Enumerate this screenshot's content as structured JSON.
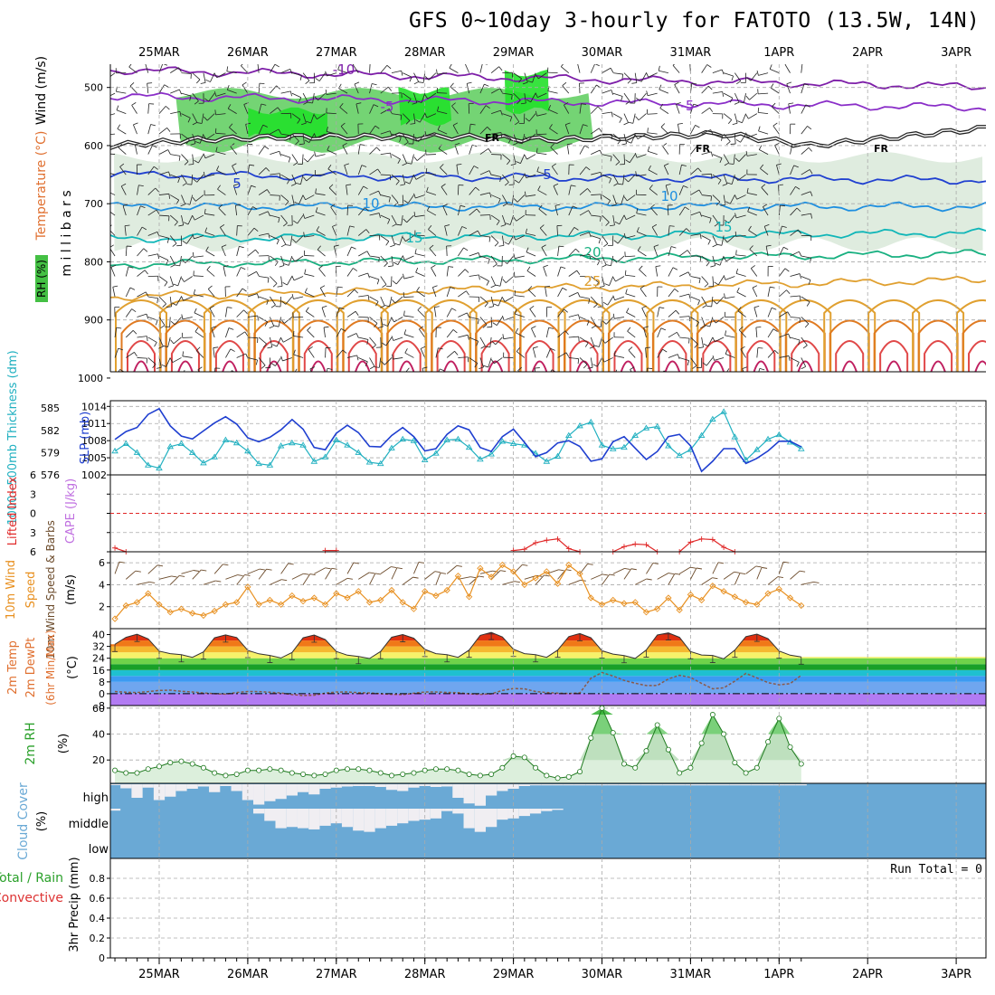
{
  "title": "GFS 0~10day 3-hourly for FATOTO (13.5W, 14N)",
  "colors": {
    "wind_label": "#000000",
    "temp_label": "#e07030",
    "rh_label": "#20b020",
    "thk": "#20b0c0",
    "slp": "#1f3fd0",
    "li": "#e02828",
    "cape": "#c070e0",
    "wspd": "#e89020",
    "rh2m": "#2aa02a",
    "cloud": "#6aa9d5",
    "precip": "#dd3333"
  },
  "chart_data": [
    {
      "id": "meteogram-axis",
      "type": "table",
      "x_label_stride": 8,
      "x_dates": [
        "25MAR",
        "26MAR",
        "27MAR",
        "28MAR",
        "29MAR",
        "30MAR",
        "31MAR",
        "1APR",
        "2APR",
        "3APR"
      ]
    },
    {
      "id": "cross-section",
      "type": "heatmap",
      "title": "Wind (m/s), Temperature (°C), RH (%)",
      "ylabel": "m i l l i b a r s",
      "axis_labels": {
        "wind": "Wind (m/s)",
        "temp": "Temperature (°C)",
        "rh": "RH (%)"
      },
      "y_ticks": [
        500,
        600,
        700,
        800,
        900,
        1000
      ],
      "ylim": [
        460,
        1025
      ],
      "freezing_level": {
        "label": "FR",
        "values_hpa": [
          600,
          590,
          585,
          585,
          585,
          590,
          585,
          580,
          600,
          585,
          570
        ]
      },
      "isotherms": [
        {
          "t": -10,
          "label": "-10",
          "hpa": 470,
          "color": "#7d1ea8"
        },
        {
          "t": -5,
          "label": "-5",
          "hpa": 515,
          "color": "#8a2ec8"
        },
        {
          "t": 5,
          "label": "5",
          "hpa": 650,
          "color": "#2040d0"
        },
        {
          "t": 10,
          "label": "10",
          "hpa": 705,
          "color": "#1e8fe0"
        },
        {
          "t": 15,
          "label": "15",
          "hpa": 760,
          "color": "#10b6b8"
        },
        {
          "t": 20,
          "label": "20",
          "hpa": 805,
          "color": "#18b080"
        },
        {
          "t": 25,
          "label": "25",
          "hpa": 860,
          "color": "#e0a030"
        }
      ],
      "rh_bands": [
        {
          "level": "moist",
          "hpa_top": 510,
          "hpa_bottom": 600,
          "day_from": 0.7,
          "day_to": 4.9
        },
        {
          "level": "dry",
          "hpa_top": 620,
          "hpa_bottom": 770,
          "day_from": 0.0,
          "day_to": 9.3
        }
      ]
    },
    {
      "id": "thk-slp",
      "type": "line",
      "labels": {
        "thk": "1000~500mb Thickness (dm)",
        "slp": "SLP (mb)"
      },
      "left_ticks": [
        576,
        579,
        582,
        585
      ],
      "right_ticks": [
        1002,
        1005,
        1008,
        1011,
        1014
      ],
      "series": [
        {
          "name": "Thickness",
          "ylim": [
            576,
            586
          ],
          "values": [
            579.2,
            580.2,
            579.0,
            577.3,
            576.9,
            579.8,
            580.2,
            579.0,
            577.6,
            578.4,
            580.7,
            580.3,
            579.2,
            577.5,
            577.3,
            579.9,
            580.3,
            580.0,
            577.8,
            578.4,
            580.7,
            580.0,
            579.0,
            577.7,
            577.5,
            579.6,
            580.8,
            580.6,
            578.0,
            578.9,
            580.7,
            580.8,
            579.7,
            578.1,
            578.8,
            580.5,
            580.2,
            580.0,
            578.9,
            577.8,
            578.5,
            581.3,
            582.6,
            583.1,
            580.0,
            579.5,
            579.7,
            581.3,
            582.3,
            582.5,
            579.9,
            578.6,
            579.4,
            581.3,
            583.5,
            584.5,
            581.1,
            578.0,
            579.4,
            580.8,
            581.4,
            580.4,
            579.5
          ]
        },
        {
          "name": "SLP",
          "ylim": [
            1002,
            1015
          ],
          "values": [
            1008.2,
            1009.6,
            1010.3,
            1012.6,
            1013.6,
            1010.6,
            1008.8,
            1008.3,
            1009.7,
            1011.1,
            1012.2,
            1010.9,
            1008.5,
            1007.8,
            1008.6,
            1009.9,
            1011.7,
            1010.0,
            1006.8,
            1006.4,
            1009.3,
            1010.7,
            1009.4,
            1007.0,
            1006.9,
            1008.9,
            1010.3,
            1008.7,
            1006.2,
            1006.6,
            1009.1,
            1010.6,
            1009.9,
            1006.8,
            1006.1,
            1008.7,
            1010.0,
            1007.7,
            1005.2,
            1005.9,
            1007.6,
            1008.0,
            1007.0,
            1004.4,
            1004.8,
            1007.8,
            1008.7,
            1006.7,
            1004.7,
            1006.1,
            1008.7,
            1009.1,
            1007.1,
            1002.6,
            1004.4,
            1006.6,
            1006.6,
            1004.0,
            1004.9,
            1006.2,
            1007.9,
            1007.9,
            1006.9
          ]
        }
      ]
    },
    {
      "id": "li-cape",
      "type": "line",
      "labels": {
        "li": "Lifted Index",
        "cape": "CAPE (J/kg)"
      },
      "y_ticks": [
        -6,
        -3,
        0,
        3,
        6
      ],
      "y_tick_labels": [
        "6",
        "3",
        "0",
        "3",
        "6"
      ],
      "ylim": [
        -6,
        6
      ],
      "series": [
        {
          "name": "Lifted Index",
          "segments": [
            {
              "start_step": 0,
              "values": [
                5.4,
                6.0
              ]
            },
            {
              "start_step": 19,
              "values": [
                5.8,
                5.8
              ]
            },
            {
              "start_step": 36,
              "values": [
                5.8,
                5.6,
                4.6,
                4.2,
                4.0,
                5.5,
                6.0
              ]
            },
            {
              "start_step": 45,
              "values": [
                6.0,
                5.2,
                4.8,
                4.9,
                6.0
              ]
            },
            {
              "start_step": 51,
              "values": [
                6.0,
                4.5,
                4.0,
                4.1,
                5.3,
                6.0
              ]
            }
          ]
        }
      ]
    },
    {
      "id": "wind10m",
      "type": "line",
      "labels": {
        "speed": "10m Wind Speed & Barbs",
        "unit": "(m/s)"
      },
      "y_ticks": [
        2,
        4,
        6
      ],
      "ylim": [
        0,
        7
      ],
      "series": [
        {
          "name": "10m Wind Speed",
          "values": [
            0.9,
            2.1,
            2.4,
            3.2,
            2.2,
            1.5,
            1.8,
            1.4,
            1.2,
            1.6,
            2.2,
            2.4,
            3.8,
            2.2,
            2.6,
            2.2,
            3.0,
            2.5,
            2.8,
            2.2,
            3.2,
            2.8,
            3.4,
            2.4,
            2.6,
            3.5,
            2.4,
            1.8,
            3.4,
            3.0,
            3.5,
            4.8,
            2.9,
            5.5,
            4.7,
            5.8,
            5.2,
            4.0,
            4.6,
            5.2,
            4.1,
            5.8,
            5.0,
            2.8,
            2.2,
            2.6,
            2.3,
            2.4,
            1.5,
            1.8,
            2.8,
            1.7,
            3.1,
            2.6,
            3.9,
            3.4,
            2.9,
            2.4,
            2.2,
            3.2,
            3.6,
            2.8,
            2.1
          ]
        }
      ]
    },
    {
      "id": "temp2m",
      "type": "area",
      "labels": {
        "temp": "2m Temp",
        "dewpt": "2m DewPt",
        "range": "(6hr Min/Max)",
        "unit": "(°C)"
      },
      "y_ticks": [
        0,
        8,
        16,
        24,
        32,
        40
      ],
      "ylim": [
        -8,
        44
      ],
      "series": [
        {
          "name": "2m Temp",
          "values": [
            33.4,
            38.1,
            40.2,
            37.1,
            28.8,
            27.1,
            26.4,
            24.6,
            28.3,
            37.8,
            39.8,
            38.0,
            29.3,
            27.0,
            25.9,
            24.2,
            27.9,
            37.8,
            39.7,
            36.6,
            28.6,
            26.1,
            25.2,
            23.8,
            28.6,
            38.2,
            40.0,
            37.5,
            30.0,
            27.1,
            26.4,
            24.6,
            29.5,
            39.5,
            41.5,
            38.4,
            30.1,
            27.1,
            26.4,
            24.6,
            29.5,
            38.6,
            40.7,
            37.8,
            29.1,
            26.8,
            25.8,
            23.9,
            29.6,
            39.7,
            41.2,
            38.1,
            28.5,
            26.2,
            25.9,
            23.6,
            29.5,
            38.6,
            40.3,
            37.2,
            28.9,
            26.1,
            24.9
          ]
        },
        {
          "name": "2m DewPt",
          "values": [
            1.5,
            1.0,
            0.8,
            1.4,
            2.2,
            2.4,
            1.6,
            1.2,
            0.5,
            0.0,
            -0.3,
            0.8,
            1.5,
            1.4,
            1.0,
            0.5,
            -0.6,
            -1.2,
            -1.0,
            0.4,
            1.1,
            1.2,
            0.7,
            0.5,
            0.0,
            -0.4,
            -0.6,
            0.3,
            1.2,
            1.2,
            0.9,
            0.7,
            -0.1,
            -0.4,
            -0.1,
            2.2,
            3.5,
            3.3,
            1.5,
            0.8,
            0.4,
            0.2,
            0.5,
            10.5,
            14.3,
            12.0,
            9.0,
            7.1,
            5.5,
            5.6,
            10.0,
            12.5,
            11.0,
            7.0,
            3.3,
            4.0,
            8.5,
            13.7,
            10.7,
            7.5,
            6.0,
            6.8,
            12.5
          ]
        }
      ]
    },
    {
      "id": "rh2m",
      "type": "area",
      "labels": {
        "title": "2m RH",
        "unit": "(%)"
      },
      "y_ticks": [
        20,
        40,
        60
      ],
      "ylim": [
        2,
        62
      ],
      "series": [
        {
          "name": "2m RH",
          "values": [
            12,
            10,
            10,
            13,
            15,
            18,
            19,
            17,
            14,
            10,
            8,
            9,
            12,
            12,
            13,
            12,
            10,
            9,
            8,
            9,
            12,
            13,
            13,
            12,
            10,
            8,
            9,
            10,
            12,
            13,
            13,
            12,
            9,
            8,
            9,
            14,
            23,
            22,
            14,
            8,
            6,
            7,
            11,
            37,
            60,
            41,
            17,
            14,
            27,
            47,
            28,
            10,
            14,
            33,
            55,
            40,
            18,
            10,
            14,
            34,
            52,
            30,
            17
          ]
        }
      ]
    },
    {
      "id": "cloud",
      "type": "bar",
      "labels": {
        "title": "Cloud Cover",
        "unit": "(%)"
      },
      "levels": [
        "high",
        "middle",
        "low"
      ],
      "series": [
        {
          "name": "high",
          "values": [
            4,
            18,
            60,
            15,
            70,
            55,
            30,
            20,
            10,
            35,
            8,
            30,
            70,
            90,
            75,
            65,
            50,
            35,
            45,
            20,
            15,
            10,
            8,
            8,
            12,
            25,
            30,
            15,
            8,
            12,
            10,
            60,
            85,
            95,
            50,
            30,
            20,
            8,
            5,
            5,
            5,
            5,
            5,
            5,
            5,
            5,
            5,
            5,
            5,
            5,
            5,
            5,
            5,
            5,
            5,
            5,
            5,
            5,
            5,
            5,
            5,
            5,
            5
          ]
        },
        {
          "name": "middle",
          "values": [
            8,
            0,
            0,
            0,
            0,
            0,
            0,
            0,
            0,
            0,
            0,
            0,
            0,
            20,
            50,
            80,
            75,
            80,
            85,
            70,
            60,
            75,
            90,
            95,
            80,
            70,
            60,
            50,
            45,
            40,
            10,
            20,
            80,
            95,
            75,
            45,
            40,
            30,
            20,
            10,
            5,
            0,
            0,
            0,
            0,
            0,
            0,
            0,
            0,
            0,
            0,
            0,
            0,
            0,
            0,
            0,
            0,
            0,
            0,
            0,
            0,
            0,
            0
          ]
        },
        {
          "name": "low",
          "values": [
            0,
            0,
            0,
            0,
            0,
            0,
            0,
            0,
            0,
            0,
            0,
            0,
            0,
            0,
            0,
            0,
            0,
            0,
            0,
            0,
            0,
            0,
            0,
            0,
            0,
            0,
            0,
            0,
            0,
            0,
            0,
            0,
            0,
            0,
            0,
            0,
            0,
            0,
            0,
            0,
            0,
            0,
            0,
            0,
            0,
            0,
            0,
            0,
            0,
            0,
            0,
            0,
            0,
            0,
            0,
            0,
            0,
            0,
            0,
            0,
            0,
            0,
            0
          ]
        }
      ]
    },
    {
      "id": "precip",
      "type": "bar",
      "labels": {
        "total": "Total / Rain",
        "convective": "Convective",
        "precip": "3hr Precip (mm)"
      },
      "y_ticks": [
        0,
        0.2,
        0.4,
        0.6,
        0.8
      ],
      "ylim": [
        0,
        1.0
      ],
      "run_total": "Run Total = 0",
      "values": []
    }
  ]
}
